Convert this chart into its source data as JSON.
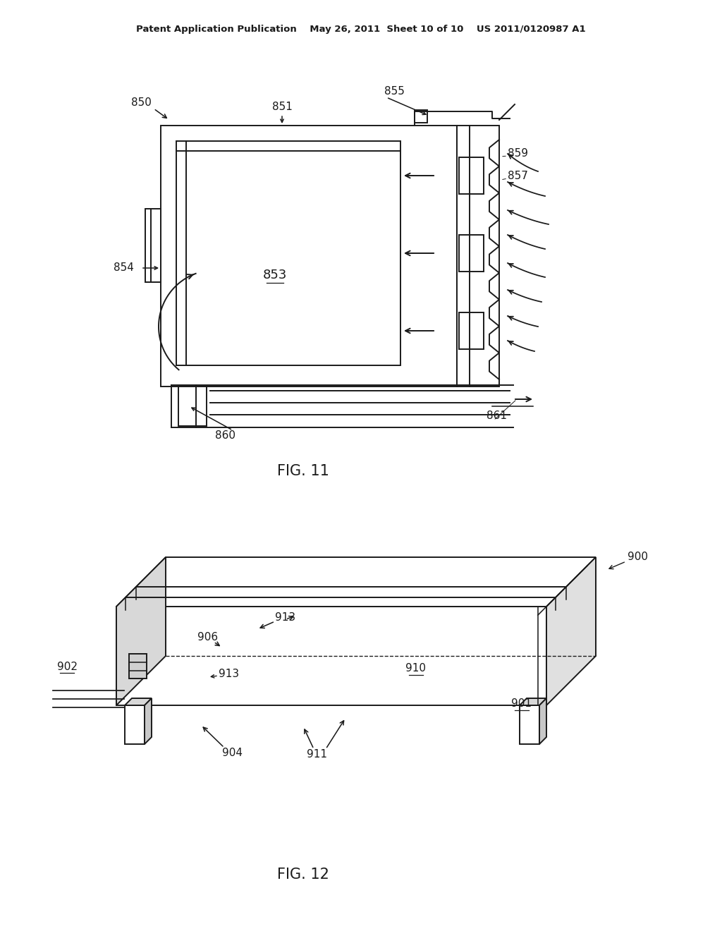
{
  "bg_color": "#ffffff",
  "lc": "#1a1a1a",
  "header": "Patent Application Publication    May 26, 2011  Sheet 10 of 10    US 2011/0120987 A1",
  "fig11_caption": "FIG. 11",
  "fig12_caption": "FIG. 12",
  "lw": 1.4
}
